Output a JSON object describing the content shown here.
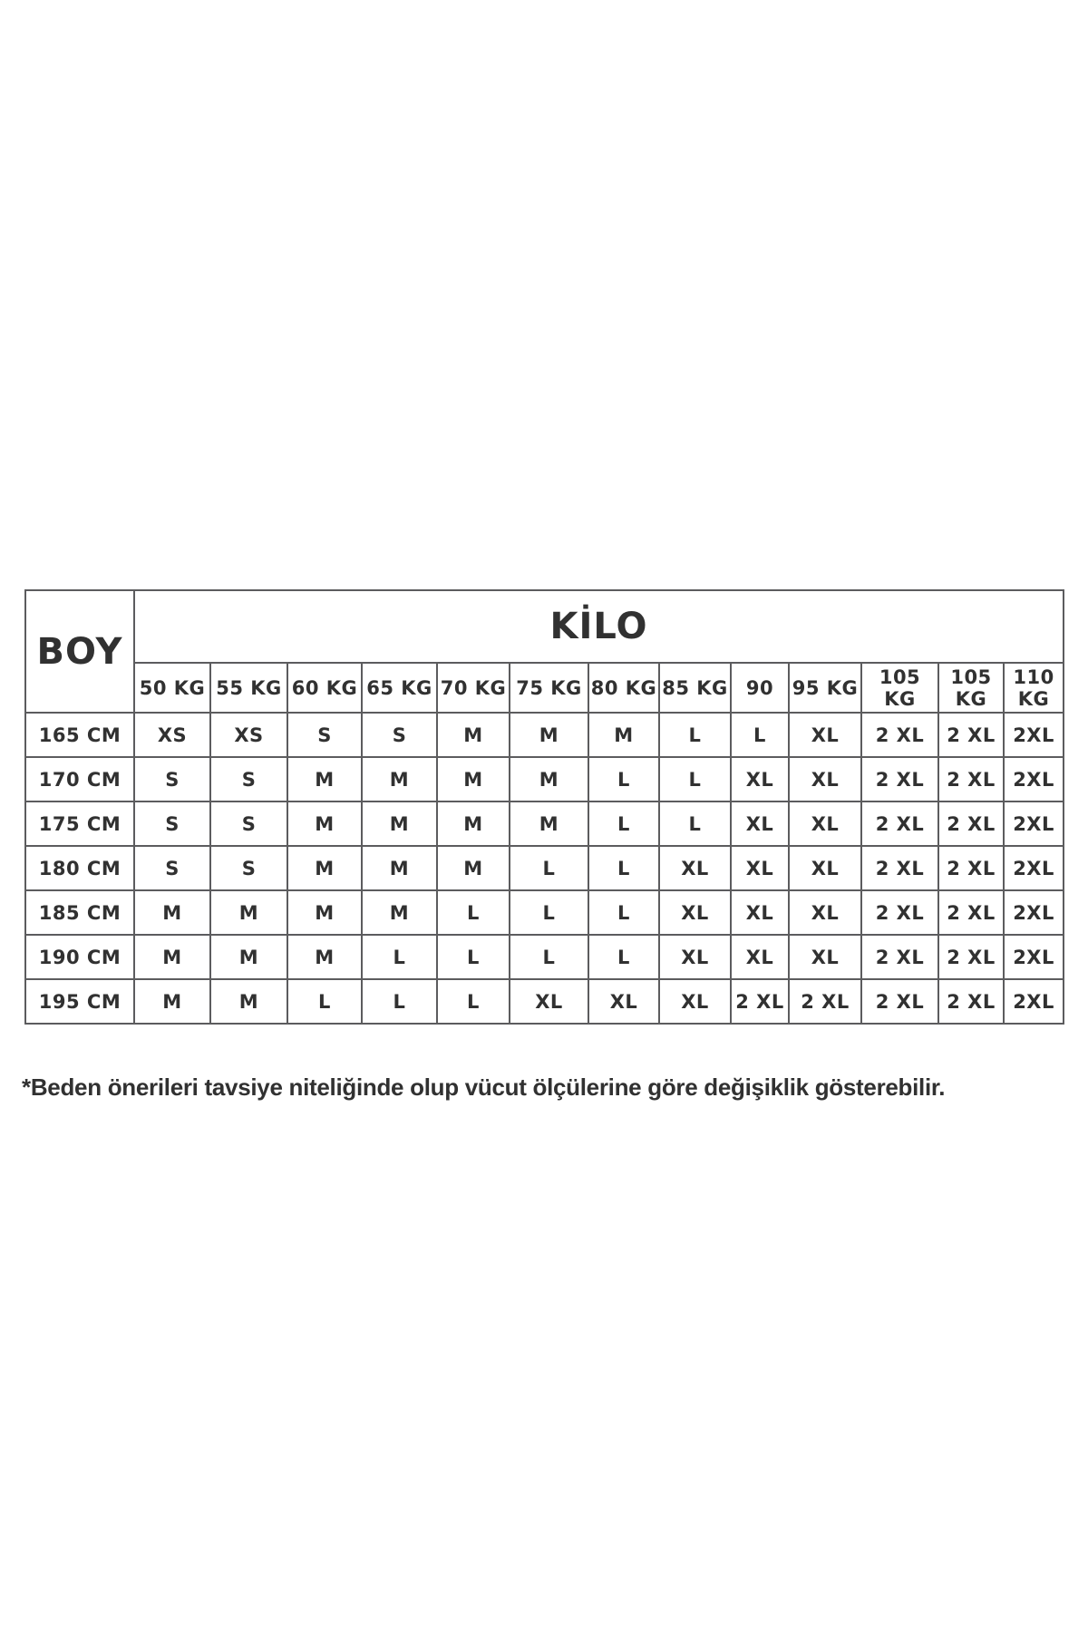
{
  "table": {
    "corner_header": "BOY",
    "group_header": "KİLO",
    "weight_columns": [
      "50 KG",
      "55 KG",
      "60 KG",
      "65 KG",
      "70 KG",
      "75 KG",
      "80 KG",
      "85 KG",
      "90",
      "95 KG",
      "105 KG",
      "105 KG",
      "110 KG"
    ],
    "rows": [
      {
        "height": "165 CM",
        "sizes": [
          "XS",
          "XS",
          "S",
          "S",
          "M",
          "M",
          "M",
          "L",
          "L",
          "XL",
          "2 XL",
          "2 XL",
          "2XL"
        ]
      },
      {
        "height": "170 CM",
        "sizes": [
          "S",
          "S",
          "M",
          "M",
          "M",
          "M",
          "L",
          "L",
          "XL",
          "XL",
          "2 XL",
          "2 XL",
          "2XL"
        ]
      },
      {
        "height": "175 CM",
        "sizes": [
          "S",
          "S",
          "M",
          "M",
          "M",
          "M",
          "L",
          "L",
          "XL",
          "XL",
          "2 XL",
          "2 XL",
          "2XL"
        ]
      },
      {
        "height": "180 CM",
        "sizes": [
          "S",
          "S",
          "M",
          "M",
          "M",
          "L",
          "L",
          "XL",
          "XL",
          "XL",
          "2 XL",
          "2 XL",
          "2XL"
        ]
      },
      {
        "height": "185 CM",
        "sizes": [
          "M",
          "M",
          "M",
          "M",
          "L",
          "L",
          "L",
          "XL",
          "XL",
          "XL",
          "2 XL",
          "2 XL",
          "2XL"
        ]
      },
      {
        "height": "190 CM",
        "sizes": [
          "M",
          "M",
          "M",
          "L",
          "L",
          "L",
          "L",
          "XL",
          "XL",
          "XL",
          "2 XL",
          "2 XL",
          "2XL"
        ]
      },
      {
        "height": "195 CM",
        "sizes": [
          "M",
          "M",
          "L",
          "L",
          "L",
          "XL",
          "XL",
          "XL",
          "2 XL",
          "2 XL",
          "2 XL",
          "2 XL",
          "2XL"
        ]
      }
    ]
  },
  "footnote": "*Beden önerileri tavsiye niteliğinde olup vücut ölçülerine göre değişiklik gösterebilir.",
  "colors": {
    "background": "#ffffff",
    "border": "#5c5c5e",
    "text": "#313131"
  }
}
